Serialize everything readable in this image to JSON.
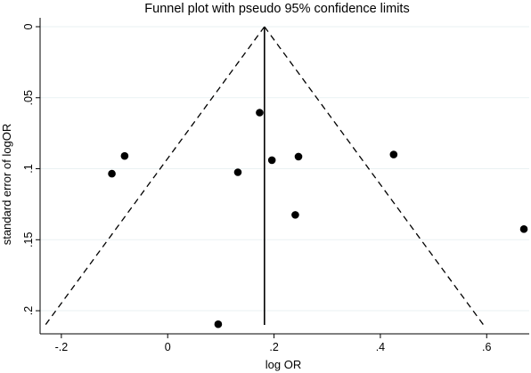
{
  "chart_data": {
    "type": "scatter",
    "title": "Funnel plot with pseudo 95% confidence limits",
    "xlabel": "log OR",
    "ylabel": "standard error of logOR",
    "xlim": [
      -0.24,
      0.68
    ],
    "ylim": [
      0,
      0.21
    ],
    "y_reversed": true,
    "xticks": [
      -0.2,
      0,
      0.2,
      0.4,
      0.6
    ],
    "xtick_labels": [
      "-.2",
      "0",
      ".2",
      ".4",
      ".6"
    ],
    "yticks": [
      0,
      0.05,
      0.1,
      0.15,
      0.2
    ],
    "ytick_labels": [
      "0",
      ".05",
      ".1",
      ".15",
      ".2"
    ],
    "grid": "horizontal",
    "pooled_estimate": 0.182,
    "ci_lines": {
      "left": [
        [
          0.182,
          0
        ],
        [
          -0.23,
          0.21
        ]
      ],
      "right": [
        [
          0.182,
          0
        ],
        [
          0.594,
          0.21
        ]
      ]
    },
    "points": [
      {
        "x": -0.105,
        "y": 0.1035
      },
      {
        "x": -0.081,
        "y": 0.091
      },
      {
        "x": 0.132,
        "y": 0.1025
      },
      {
        "x": 0.173,
        "y": 0.0605
      },
      {
        "x": 0.196,
        "y": 0.094
      },
      {
        "x": 0.246,
        "y": 0.0915
      },
      {
        "x": 0.24,
        "y": 0.1325
      },
      {
        "x": 0.425,
        "y": 0.09
      },
      {
        "x": 0.095,
        "y": 0.2095
      },
      {
        "x": 0.67,
        "y": 0.1425
      }
    ]
  }
}
